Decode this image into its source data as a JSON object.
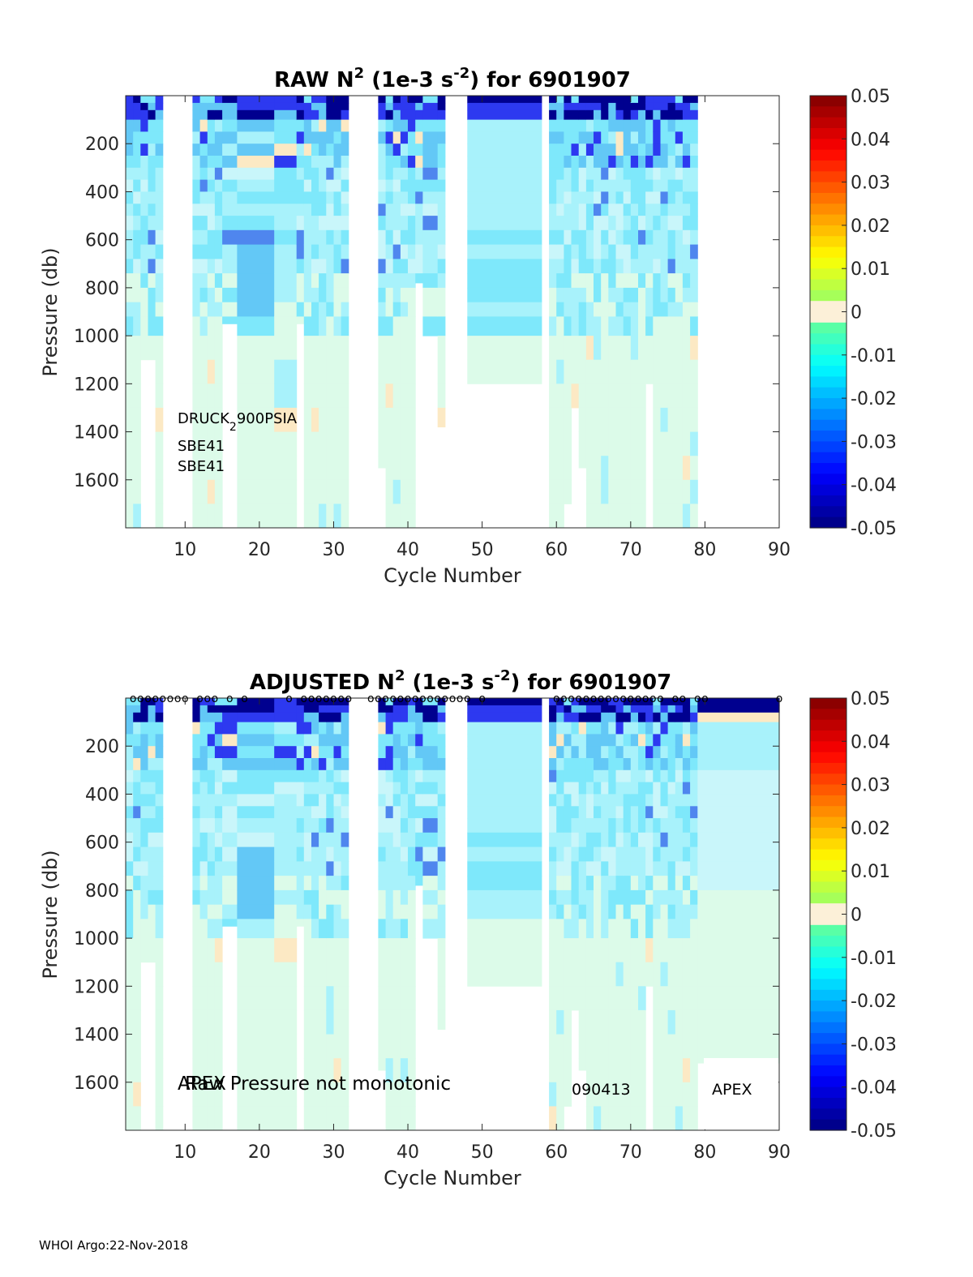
{
  "footer": "WHOI Argo:22-Nov-2018",
  "chart_data": [
    {
      "type": "heatmap",
      "title": "RAW N² (1e-3 s⁻²) for 6901907",
      "title_parts": {
        "prefix": "RAW N",
        "sup1": "2",
        "mid": " (1e-3 s",
        "sup2": "-2",
        "suffix": ") for 6901907"
      },
      "xlabel": "Cycle Number",
      "ylabel": "Pressure (db)",
      "xlim": [
        2,
        90
      ],
      "ylim": [
        1800,
        0
      ],
      "y_reversed": true,
      "xticks": [
        10,
        20,
        30,
        40,
        50,
        60,
        70,
        80,
        90
      ],
      "yticks": [
        200,
        400,
        600,
        800,
        1000,
        1200,
        1400,
        1600
      ],
      "colorbar": {
        "min": -0.05,
        "max": 0.05,
        "ticks": [
          "0.05",
          "0.04",
          "0.03",
          "0.02",
          "0.01",
          "0",
          "-0.01",
          "-0.02",
          "-0.03",
          "-0.04",
          "-0.05"
        ],
        "colormap": "jet"
      },
      "annotations": [
        {
          "text": "DRUCK",
          "sub": "2",
          "after": "900PSIA"
        },
        {
          "text": "SBE41"
        },
        {
          "text": "SBE41"
        }
      ],
      "grid": false
    },
    {
      "type": "heatmap",
      "title": "ADJUSTED N² (1e-3 s⁻²) for 6901907",
      "title_parts": {
        "prefix": "ADJUSTED N",
        "sup1": "2",
        "mid": " (1e-3 s",
        "sup2": "-2",
        "suffix": ") for 6901907"
      },
      "xlabel": "Cycle Number",
      "ylabel": "Pressure (db)",
      "xlim": [
        2,
        90
      ],
      "ylim": [
        1800,
        0
      ],
      "y_reversed": true,
      "xticks": [
        10,
        20,
        30,
        40,
        50,
        60,
        70,
        80,
        90
      ],
      "yticks": [
        200,
        400,
        600,
        800,
        1000,
        1200,
        1400,
        1600
      ],
      "colorbar": {
        "min": -0.05,
        "max": 0.05,
        "ticks": [
          "0.05",
          "0.04",
          "0.03",
          "0.02",
          "0.01",
          "0",
          "-0.01",
          "-0.02",
          "-0.03",
          "-0.04",
          "-0.05"
        ],
        "colormap": "jet"
      },
      "annotations": [
        {
          "text": "APEX"
        },
        {
          "text": "Raw Pressure not monotonic"
        },
        {
          "text": "090413"
        },
        {
          "text": "APEX"
        }
      ],
      "marker_symbol": "o",
      "qc_marker_cycles": [
        3,
        4,
        5,
        6,
        7,
        8,
        9,
        10,
        12,
        13,
        14,
        16,
        18,
        24,
        26,
        27,
        28,
        29,
        30,
        31,
        32,
        35,
        36,
        37,
        38,
        39,
        40,
        41,
        42,
        43,
        44,
        45,
        46,
        47,
        48,
        50,
        60,
        61,
        62,
        63,
        64,
        65,
        66,
        67,
        68,
        69,
        70,
        71,
        72,
        73,
        74,
        76,
        77,
        79,
        80,
        90
      ],
      "grid": false
    }
  ]
}
